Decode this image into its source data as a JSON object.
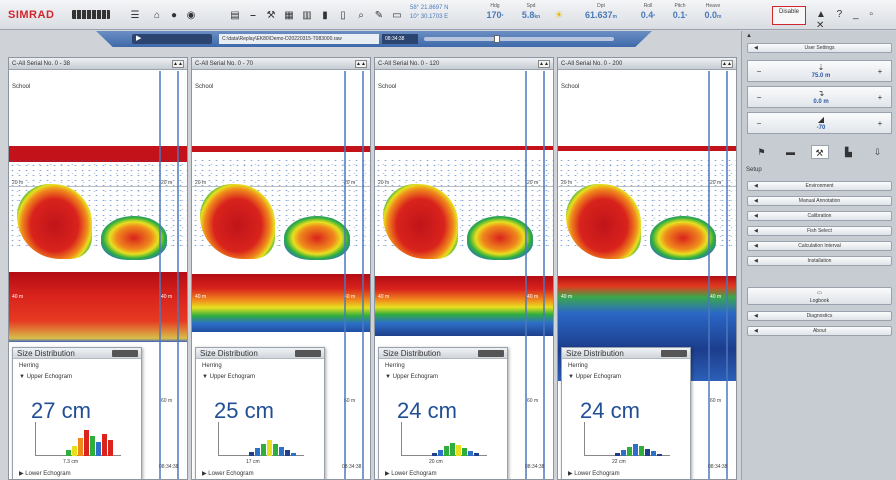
{
  "toolbar": {
    "logo": "SIMRAD",
    "latitude": "58° 21.8697 N",
    "longitude": "10° 30.1703 E",
    "heading": {
      "label": "Hdg",
      "value": "170",
      "unit": "°"
    },
    "speed": {
      "label": "Spd",
      "value": "5.8",
      "unit": "kn"
    },
    "depth": {
      "label": "Dpt",
      "value": "61.637",
      "unit": "m"
    },
    "roll": {
      "label": "Roll",
      "value": "0.4",
      "unit": "°"
    },
    "pitch": {
      "label": "Pitch",
      "value": "0.1",
      "unit": "°"
    },
    "heave": {
      "label": "Heave",
      "value": "0.0",
      "unit": "m"
    },
    "disable_button": "Disable",
    "window_controls": "▲ ? _ ▫ ✕"
  },
  "replay": {
    "play_label": "▶",
    "file": "C:\\data\\Replay\\EK80\\Demo-D20220315-T083000.raw",
    "time": "08:34:38",
    "position": 0.38
  },
  "panels": [
    {
      "title": "C-All Serial No. 0 - 38",
      "school": "School",
      "depth_20": "20 m",
      "depth_40": "40 m",
      "depth_60": "60 m",
      "time": "08:34:38",
      "sd": {
        "title": "Size Distribution",
        "species": "Herring",
        "upper": "Upper Echogram",
        "size": "27 cm",
        "xlabel": "7.3 cm",
        "lower": "Lower Echogram"
      }
    },
    {
      "title": "C-All Serial No. 0 - 70",
      "school": "School",
      "depth_20": "20 m",
      "depth_40": "40 m",
      "depth_60": "60 m",
      "time": "08:34:38",
      "sd": {
        "title": "Size Distribution",
        "species": "Herring",
        "upper": "Upper Echogram",
        "size": "25 cm",
        "xlabel": "17 cm",
        "lower": "Lower Echogram"
      }
    },
    {
      "title": "C-All Serial No. 0 - 120",
      "school": "School",
      "depth_20": "20 m",
      "depth_40": "40 m",
      "depth_60": "60 m",
      "time": "08:34:38",
      "sd": {
        "title": "Size Distribution",
        "species": "Herring",
        "upper": "Upper Echogram",
        "size": "24 cm",
        "xlabel": "20 cm",
        "lower": "Lower Echogram"
      }
    },
    {
      "title": "C-All Serial No. 0 - 200",
      "school": "School",
      "depth_20": "20 m",
      "depth_40": "40 m",
      "depth_60": "60 m",
      "time": "08:34:38",
      "sd": {
        "title": "Size Distribution",
        "species": "Herring",
        "upper": "Upper Echogram",
        "size": "24 cm",
        "xlabel": "22 cm",
        "lower": "Lower Echogram"
      }
    }
  ],
  "right_panel": {
    "user_settings": "User Settings",
    "range": {
      "icon": "range-icon",
      "value": "75.0 m"
    },
    "start": {
      "icon": "start-depth-icon",
      "value": "0.0 m"
    },
    "gain": {
      "icon": "gain-icon",
      "value": "-70"
    },
    "setup_label": "Setup",
    "buttons": [
      "Environment",
      "Manual Annotation",
      "Calibration",
      "Fish Select",
      "Calculation Interval",
      "Installation"
    ],
    "logbook": "Logbook",
    "buttons2": [
      "Diagnostics",
      "About"
    ]
  }
}
